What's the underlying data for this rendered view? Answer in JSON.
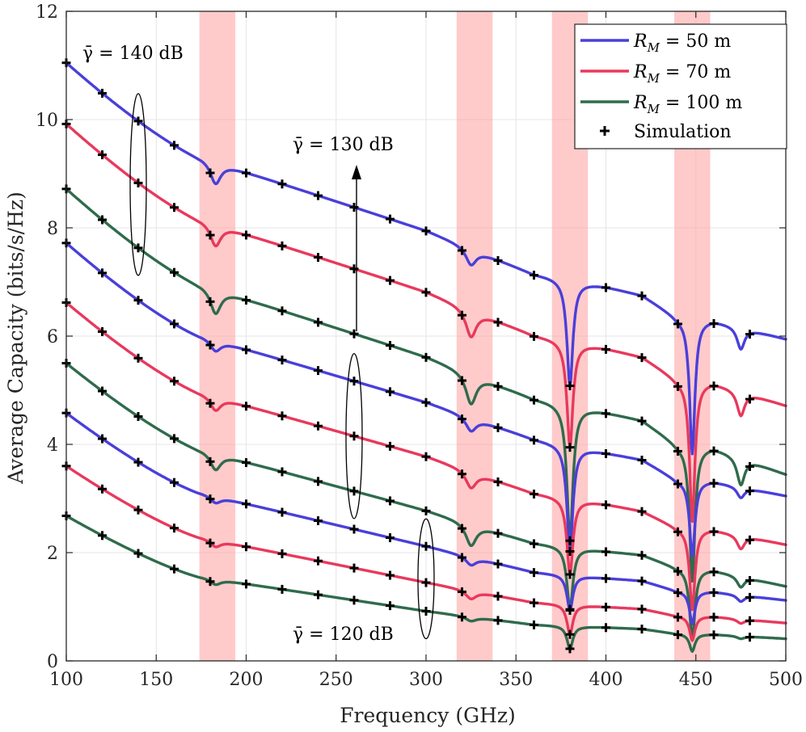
{
  "chart_data": {
    "type": "line",
    "xlabel": "Frequency (GHz)",
    "ylabel": "Average Capacity (bits/s/Hz)",
    "xlim": [
      100,
      500
    ],
    "ylim": [
      0,
      12
    ],
    "xticks": [
      100,
      150,
      200,
      250,
      300,
      350,
      400,
      450,
      500
    ],
    "yticks": [
      0,
      2,
      4,
      6,
      8,
      10,
      12
    ],
    "grid": true,
    "legend_position": "top-right",
    "colors": {
      "blue": "#4a3fd9",
      "red": "#e8395d",
      "green": "#2f6b4c",
      "band": "#ff9f9f"
    },
    "legend": [
      {
        "key": "r50",
        "label": "R_M = 50 m",
        "color": "#4a3fd9"
      },
      {
        "key": "r70",
        "label": "R_M = 70 m",
        "color": "#e8395d"
      },
      {
        "key": "r100",
        "label": "R_M = 100 m",
        "color": "#2f6b4c"
      },
      {
        "key": "sim",
        "label": "Simulation",
        "marker": "plus",
        "color": "#000000"
      }
    ],
    "absorption_bands_ghz": [
      [
        174,
        194
      ],
      [
        317,
        337
      ],
      [
        370,
        390
      ],
      [
        438,
        458
      ]
    ],
    "absorption_dips": [
      {
        "f": 183,
        "w": 3.5
      },
      {
        "f": 325,
        "w": 3.5
      },
      {
        "f": 380,
        "w": 2.0
      },
      {
        "f": 448,
        "w": 1.8
      },
      {
        "f": 475,
        "w": 2.5
      }
    ],
    "marker_frequencies": [
      100,
      120,
      140,
      160,
      180,
      200,
      220,
      240,
      260,
      280,
      300,
      320,
      340,
      360,
      380,
      400,
      420,
      440,
      460,
      480
    ],
    "series": [
      {
        "name": "R_M = 50 m, gamma = 140 dB",
        "color": "#4a3fd9",
        "snr_db": 140,
        "y100": 11.05,
        "y175": 9.3,
        "y300": 7.95,
        "y360": 7.15,
        "y400": 6.92,
        "y420": 6.76,
        "y440": 6.35,
        "y460": 6.3,
        "y500": 5.95,
        "dips": [
          0.4,
          0.3,
          1.95,
          2.5,
          0.4
        ]
      },
      {
        "name": "R_M = 70 m, gamma = 140 dB",
        "color": "#e8395d",
        "snr_db": 140,
        "y100": 9.92,
        "y175": 8.15,
        "y300": 6.82,
        "y360": 6.02,
        "y400": 5.78,
        "y420": 5.62,
        "y440": 5.2,
        "y460": 5.15,
        "y500": 4.72,
        "dips": [
          0.4,
          0.5,
          1.95,
          2.6,
          0.45
        ]
      },
      {
        "name": "R_M = 100 m, gamma = 140 dB",
        "color": "#2f6b4c",
        "snr_db": 140,
        "y100": 8.72,
        "y175": 6.95,
        "y300": 5.62,
        "y360": 4.85,
        "y400": 4.6,
        "y420": 4.45,
        "y440": 4.0,
        "y460": 3.95,
        "y500": 3.45,
        "dips": [
          0.45,
          0.55,
          2.5,
          2.5,
          0.5
        ]
      },
      {
        "name": "R_M = 50 m, gamma = 130 dB",
        "color": "#4a3fd9",
        "snr_db": 130,
        "y100": 7.72,
        "y175": 6.0,
        "y300": 4.78,
        "y360": 4.1,
        "y400": 3.85,
        "y420": 3.72,
        "y440": 3.34,
        "y460": 3.32,
        "y500": 3.05,
        "dips": [
          0.2,
          0.25,
          1.95,
          1.4,
          0.2
        ]
      },
      {
        "name": "R_M = 70 m, gamma = 130 dB",
        "color": "#e8395d",
        "snr_db": 130,
        "y100": 6.62,
        "y175": 4.95,
        "y300": 3.78,
        "y360": 3.1,
        "y400": 2.9,
        "y420": 2.77,
        "y440": 2.46,
        "y460": 2.43,
        "y500": 2.15,
        "dips": [
          0.25,
          0.3,
          1.4,
          1.5,
          0.25
        ]
      },
      {
        "name": "R_M = 100 m, gamma = 130 dB",
        "color": "#2f6b4c",
        "snr_db": 130,
        "y100": 5.5,
        "y175": 3.9,
        "y300": 2.78,
        "y360": 2.18,
        "y400": 2.03,
        "y420": 1.96,
        "y440": 1.72,
        "y460": 1.68,
        "y500": 1.38,
        "dips": [
          0.3,
          0.4,
          1.15,
          1.3,
          0.2
        ]
      },
      {
        "name": "R_M = 50 m, gamma = 120 dB",
        "color": "#4a3fd9",
        "snr_db": 120,
        "y100": 4.58,
        "y175": 3.1,
        "y300": 2.12,
        "y360": 1.64,
        "y400": 1.53,
        "y420": 1.48,
        "y440": 1.29,
        "y460": 1.28,
        "y500": 1.12,
        "dips": [
          0.12,
          0.15,
          0.65,
          0.6,
          0.12
        ]
      },
      {
        "name": "R_M = 70 m, gamma = 120 dB",
        "color": "#e8395d",
        "snr_db": 120,
        "y100": 3.6,
        "y175": 2.28,
        "y300": 1.45,
        "y360": 1.08,
        "y400": 1.0,
        "y420": 0.96,
        "y440": 0.83,
        "y460": 0.82,
        "y500": 0.7,
        "dips": [
          0.12,
          0.15,
          0.55,
          0.45,
          0.08
        ]
      },
      {
        "name": "R_M = 100 m, gamma = 120 dB",
        "color": "#2f6b4c",
        "snr_db": 120,
        "y100": 2.68,
        "y175": 1.55,
        "y300": 0.92,
        "y360": 0.67,
        "y400": 0.62,
        "y420": 0.59,
        "y440": 0.5,
        "y460": 0.49,
        "y500": 0.41,
        "dips": [
          0.1,
          0.08,
          0.42,
          0.32,
          0.05
        ]
      }
    ],
    "annotations": [
      {
        "key": "g140",
        "text": "γ̄ = 140 dB"
      },
      {
        "key": "g130",
        "text": "γ̄ = 130 dB"
      },
      {
        "key": "g120",
        "text": "γ̄ = 120 dB"
      }
    ]
  }
}
